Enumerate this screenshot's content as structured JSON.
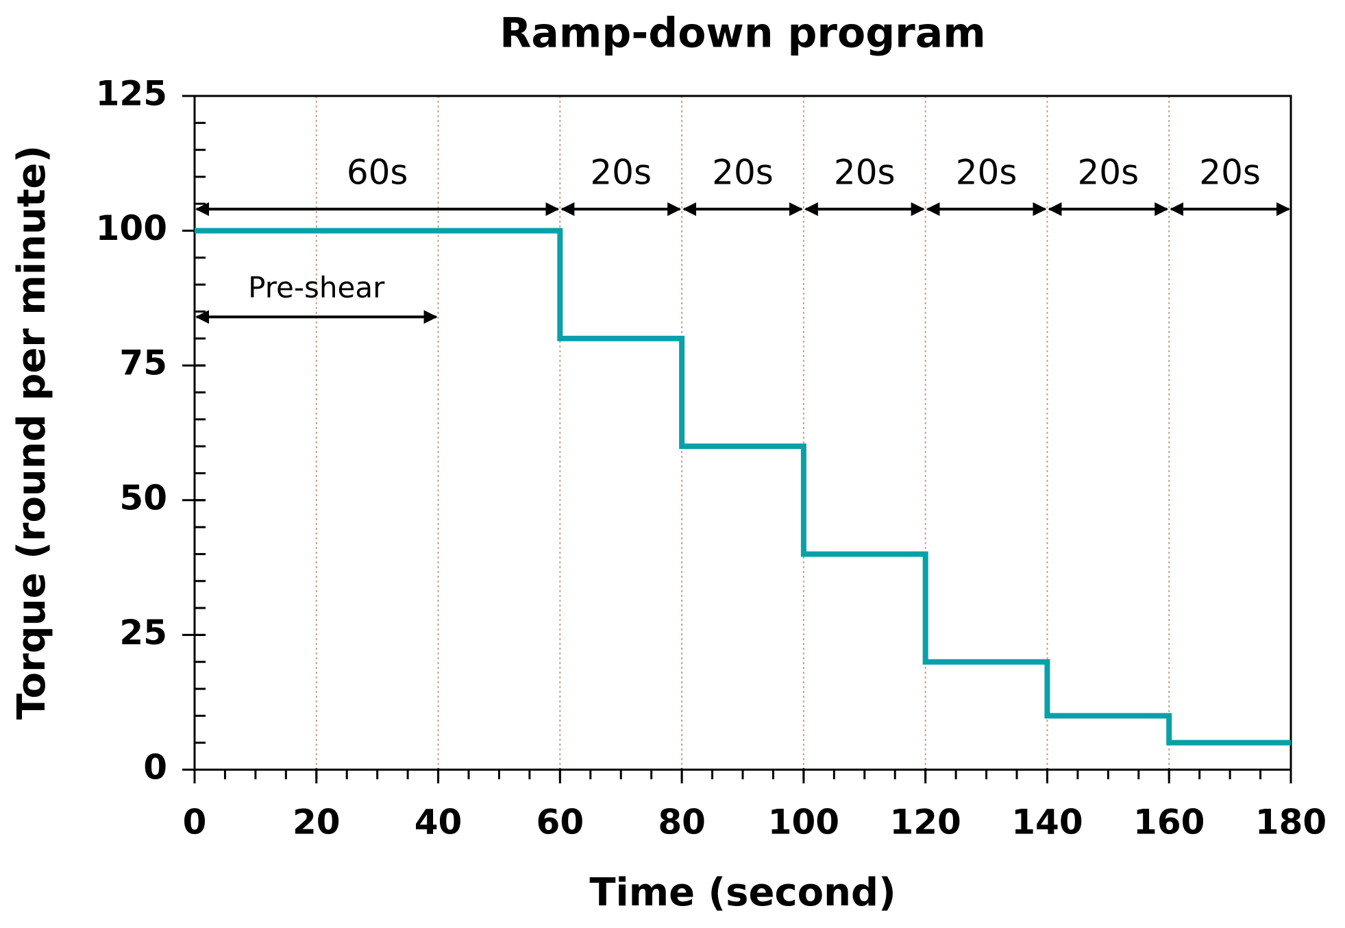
{
  "chart_data": {
    "type": "line",
    "title": "Ramp-down program",
    "x_label": "Time (second)",
    "y_label": "Torque (round per minute)",
    "x": [
      0,
      60,
      60,
      80,
      80,
      100,
      100,
      120,
      120,
      140,
      140,
      160,
      160,
      180
    ],
    "series": [
      {
        "color": "#0aa0a8",
        "values": [
          100,
          100,
          80,
          80,
          60,
          60,
          40,
          40,
          20,
          20,
          10,
          10,
          5,
          5
        ]
      }
    ],
    "xlim": [
      0,
      180
    ],
    "xticks": [
      0,
      20,
      40,
      60,
      80,
      100,
      120,
      140,
      160,
      180
    ],
    "ylim": [
      0,
      125
    ],
    "yticks": [
      0,
      25,
      50,
      75,
      100,
      125
    ],
    "minor_tick_step": 5,
    "grid": "x",
    "annotations": [
      {
        "text": "60s",
        "start": 0,
        "end": 60,
        "y": 104
      },
      {
        "text": "20s",
        "start": 60,
        "end": 80,
        "y": 104
      },
      {
        "text": "20s",
        "start": 80,
        "end": 100,
        "y": 104
      },
      {
        "text": "20s",
        "start": 100,
        "end": 120,
        "y": 104
      },
      {
        "text": "20s",
        "start": 120,
        "end": 140,
        "y": 104
      },
      {
        "text": "20s",
        "start": 140,
        "end": 160,
        "y": 104
      },
      {
        "text": "20s",
        "start": 160,
        "end": 180,
        "y": 104
      },
      {
        "text": "Pre-shear",
        "start": 0,
        "end": 40,
        "y": 84
      }
    ]
  }
}
